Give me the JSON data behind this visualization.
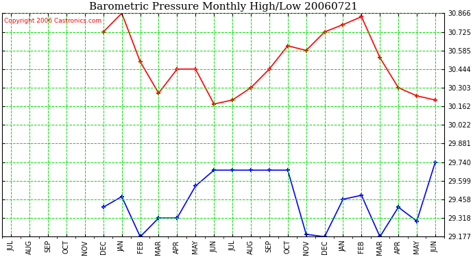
{
  "title": "Barometric Pressure Monthly High/Low 20060721",
  "copyright": "Copyright 2006 Castronics.com",
  "months": [
    "JUL",
    "AUG",
    "SEP",
    "OCT",
    "NOV",
    "DEC",
    "JAN",
    "FEB",
    "MAR",
    "APR",
    "MAY",
    "JUN",
    "JUL",
    "AUG",
    "SEP",
    "OCT",
    "NOV",
    "DEC",
    "JAN",
    "FEB",
    "MAR",
    "APR",
    "MAY",
    "JUN"
  ],
  "high_values": [
    null,
    null,
    null,
    null,
    null,
    30.725,
    30.866,
    30.5,
    30.262,
    30.444,
    30.444,
    30.18,
    30.21,
    30.303,
    30.444,
    30.62,
    30.585,
    30.725,
    30.78,
    30.84,
    30.53,
    30.303,
    30.242,
    30.21
  ],
  "low_values": [
    null,
    null,
    null,
    null,
    null,
    29.4,
    29.48,
    29.177,
    29.318,
    29.318,
    29.56,
    29.68,
    29.68,
    29.68,
    29.68,
    29.68,
    29.195,
    29.177,
    29.46,
    29.49,
    29.177,
    29.4,
    29.295,
    29.74
  ],
  "yticks": [
    29.177,
    29.318,
    29.458,
    29.599,
    29.74,
    29.881,
    30.022,
    30.162,
    30.303,
    30.444,
    30.585,
    30.725,
    30.866
  ],
  "ymin": 29.177,
  "ymax": 30.866,
  "high_color": "red",
  "low_color": "blue",
  "grid_color": "#00dd00",
  "bg_color": "white",
  "title_fontsize": 11,
  "copyright_fontsize": 6.5,
  "tick_fontsize": 7,
  "figwidth": 6.9,
  "figheight": 3.75,
  "dpi": 100
}
